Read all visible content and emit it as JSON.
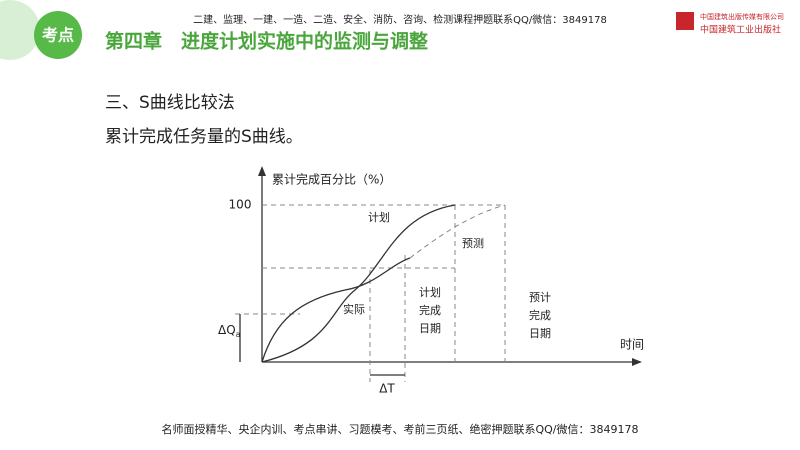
{
  "header": {
    "badge": "考点",
    "title": "第四章　进度计划实施中的监测与调整",
    "banner": "二建、监理、一建、一造、二造、安全、消防、咨询、检测课程押题联系QQ/微信：3849178",
    "logo_line1": "中国建筑出版传媒有限公司",
    "logo_line2": "中国建筑工业出版社"
  },
  "body": {
    "heading": "三、S曲线比较法",
    "subheading": "累计完成任务量的S曲线。"
  },
  "diagram": {
    "y_axis_label": "累计完成百分比（%）",
    "y_max_label": "100",
    "x_axis_label": "时间",
    "plan_label": "计划",
    "actual_label": "实际",
    "forecast_label": "预测",
    "delta_q": {
      "main": "ΔQ",
      "sub": "a"
    },
    "delta_t": "ΔT",
    "plan_finish": [
      "计划",
      "完成",
      "日期"
    ],
    "forecast_finish": [
      "预计",
      "完成",
      "日期"
    ]
  },
  "footer": "名师面授精华、央企内训、考点串讲、习题模考、考前三页纸、绝密押题联系QQ/微信：3849178"
}
